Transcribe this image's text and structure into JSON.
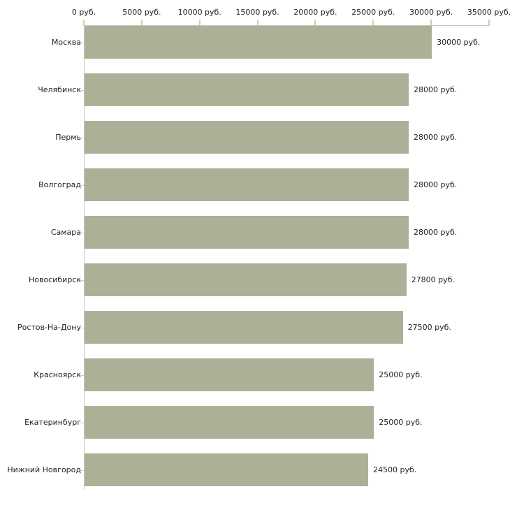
{
  "chart_data": {
    "type": "bar",
    "orientation": "horizontal",
    "title": "",
    "xlabel": "",
    "ylabel": "",
    "unit": "руб.",
    "grid": false,
    "legend": false,
    "xlim": [
      0,
      35000
    ],
    "x_ticks": [
      {
        "value": 0,
        "label": "0 руб."
      },
      {
        "value": 5000,
        "label": "5000 руб."
      },
      {
        "value": 10000,
        "label": "10000 руб."
      },
      {
        "value": 15000,
        "label": "15000 руб."
      },
      {
        "value": 20000,
        "label": "20000 руб."
      },
      {
        "value": 25000,
        "label": "25000 руб."
      },
      {
        "value": 30000,
        "label": "30000 руб."
      },
      {
        "value": 35000,
        "label": "35000 руб."
      }
    ],
    "categories": [
      "Москва",
      "Челябинск",
      "Пермь",
      "Волгоград",
      "Самара",
      "Новосибирск",
      "Ростов-На-Дону",
      "Красноярск",
      "Екатеринбург",
      "Нижний Новгород"
    ],
    "values": [
      30000,
      28000,
      28000,
      28000,
      28000,
      27800,
      27500,
      25000,
      25000,
      24500
    ],
    "value_labels": [
      "30000 руб.",
      "28000 руб.",
      "28000 руб.",
      "28000 руб.",
      "28000 руб.",
      "27800 руб.",
      "27500 руб.",
      "25000 руб.",
      "25000 руб.",
      "24500 руб."
    ],
    "colors": {
      "bar": "#abb197",
      "axis_line": "#c6c6c6",
      "tick": "#cdd0a2",
      "text": "#222222",
      "background": "#ffffff"
    }
  }
}
